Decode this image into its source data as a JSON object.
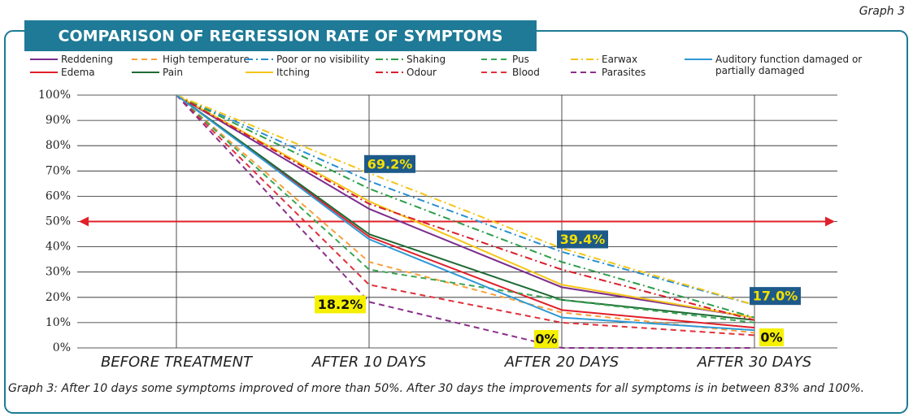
{
  "graph_label": "Graph 3",
  "caption": "Graph 3: After 10 days some symptoms improved of more than 50%. After 30 days the improvements for all symptoms is in between 83% and 100%.",
  "chart_data": {
    "type": "line",
    "title": "COMPARISON OF REGRESSION RATE OF SYMPTOMS",
    "categories": [
      "BEFORE TREATMENT",
      "AFTER 10 DAYS",
      "AFTER 20 DAYS",
      "AFTER 30 DAYS"
    ],
    "ylim": [
      0,
      100
    ],
    "yticks": [
      {
        "value": 0,
        "label": "0%"
      },
      {
        "value": 10,
        "label": "10%"
      },
      {
        "value": 20,
        "label": "20%"
      },
      {
        "value": 30,
        "label": "30%"
      },
      {
        "value": 40,
        "label": "40%"
      },
      {
        "value": 50,
        "label": "50%"
      },
      {
        "value": 60,
        "label": "60%"
      },
      {
        "value": 70,
        "label": "70%"
      },
      {
        "value": 80,
        "label": "80%"
      },
      {
        "value": 90,
        "label": "90%"
      },
      {
        "value": 100,
        "label": "100%"
      }
    ],
    "grid": true,
    "reference_line": 50,
    "reference_color": "#e0202a",
    "series": [
      {
        "name": "Reddening",
        "color": "#7b2d8e",
        "dash": "solid",
        "values": [
          100,
          55,
          24,
          12
        ]
      },
      {
        "name": "Edema",
        "color": "#e0202a",
        "dash": "solid",
        "values": [
          100,
          44,
          15,
          8
        ]
      },
      {
        "name": "High temperature",
        "color": "#f7a03c",
        "dash": "dashed",
        "values": [
          100,
          34,
          14,
          6
        ]
      },
      {
        "name": "Pain",
        "color": "#1f6b35",
        "dash": "solid",
        "values": [
          100,
          45,
          19,
          11
        ]
      },
      {
        "name": "Poor or no visibility",
        "color": "#2a8fd0",
        "dash": "dashdot",
        "values": [
          100,
          66,
          38,
          17
        ]
      },
      {
        "name": "Itching",
        "color": "#f5c518",
        "dash": "solid",
        "values": [
          100,
          58,
          25,
          12
        ]
      },
      {
        "name": "Shaking",
        "color": "#2e9e4a",
        "dash": "dashdot",
        "values": [
          100,
          63,
          34,
          12
        ]
      },
      {
        "name": "Odour",
        "color": "#d81e2a",
        "dash": "dashdot",
        "values": [
          100,
          57,
          31,
          11
        ]
      },
      {
        "name": "Pus",
        "color": "#3aa655",
        "dash": "dashed",
        "values": [
          100,
          31,
          19,
          10
        ]
      },
      {
        "name": "Blood",
        "color": "#e0303a",
        "dash": "dashed",
        "values": [
          100,
          25,
          10,
          5
        ]
      },
      {
        "name": "Earwax",
        "color": "#f5c518",
        "dash": "dashdot",
        "values": [
          100,
          69.2,
          39.4,
          17
        ],
        "value_labels": [
          null,
          "69.2%",
          "39.4%",
          "17.0%"
        ]
      },
      {
        "name": "Parasites",
        "color": "#8a2e8a",
        "dash": "dashed",
        "values": [
          100,
          18.2,
          0,
          0
        ],
        "value_labels": [
          null,
          "18.2%",
          "0%",
          "0%"
        ]
      },
      {
        "name": "Auditory function damaged or partially damaged",
        "color": "#2f9ad6",
        "dash": "solid",
        "values": [
          100,
          43,
          12,
          7
        ]
      }
    ]
  }
}
